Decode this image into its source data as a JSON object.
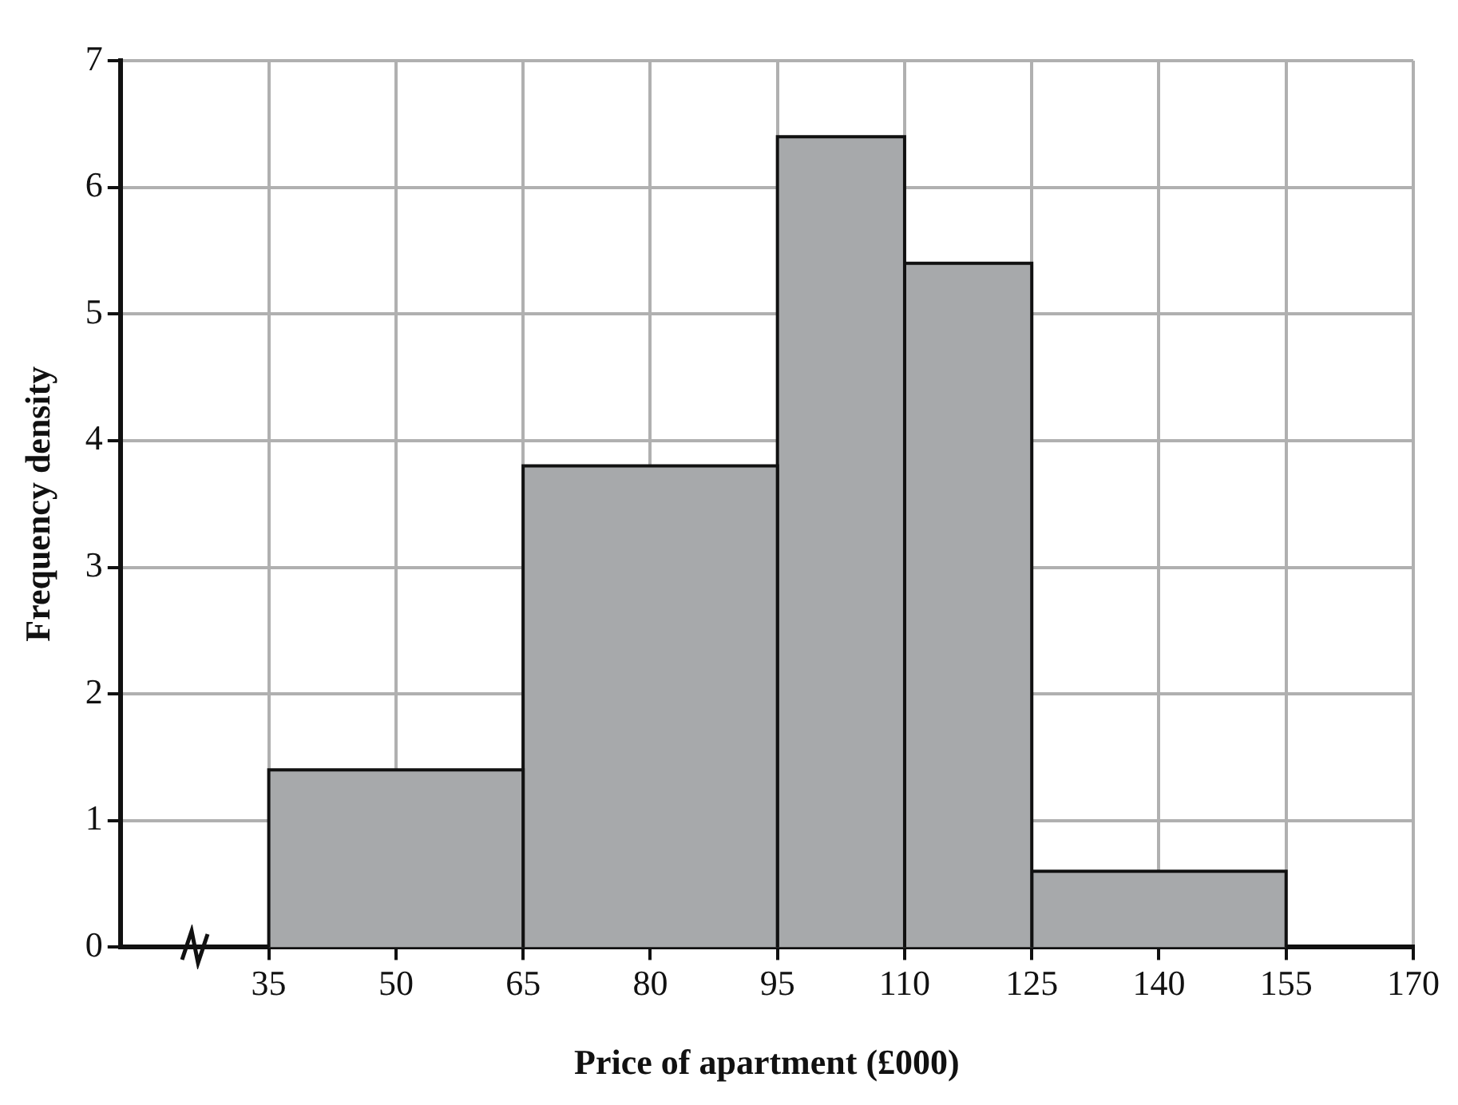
{
  "chart_data": {
    "type": "histogram",
    "xlabel": "Price of apartment (£000)",
    "ylabel": "Frequency density",
    "bins": [
      35,
      65,
      95,
      110,
      125,
      155
    ],
    "values": [
      1.4,
      3.8,
      6.4,
      5.4,
      0.6
    ],
    "color": "#a7a9ab",
    "xlim": [
      17.5,
      170
    ],
    "xticks": [
      35,
      50,
      65,
      80,
      95,
      110,
      125,
      140,
      155,
      170
    ],
    "ylim": [
      0,
      7
    ],
    "yticks": [
      0,
      1,
      2,
      3,
      4,
      5,
      6,
      7
    ],
    "grid": true
  }
}
